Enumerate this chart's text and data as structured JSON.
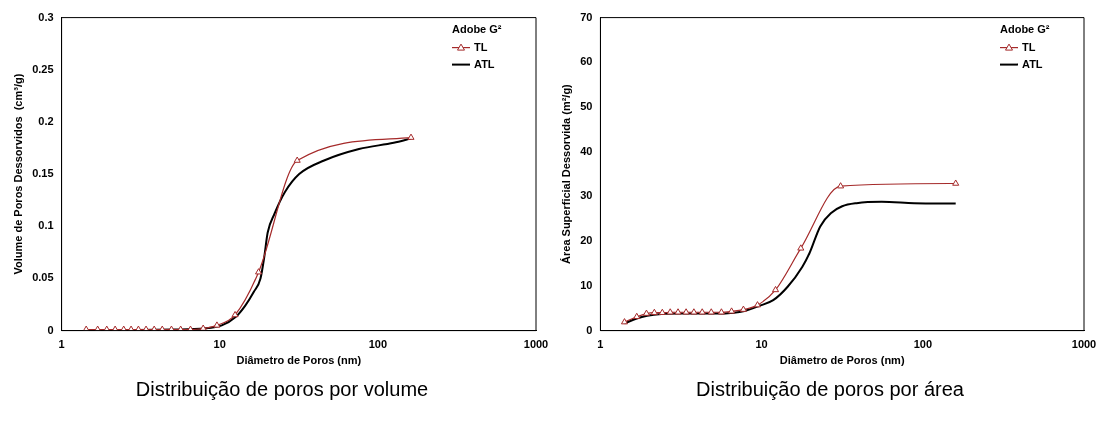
{
  "chart_data": [
    {
      "type": "line",
      "title": "Distribuição de poros por volume",
      "xlabel": "Diâmetro de Poros (nm)",
      "ylabel": "Volume de Poros Dessorvidos  (cm³/g)",
      "legend_title": "Adobe G²",
      "log": "x",
      "xlim": [
        1,
        1000
      ],
      "xticks": [
        1,
        10,
        100,
        1000
      ],
      "ylim": [
        0,
        0.3
      ],
      "yticks": [
        0,
        0.05,
        0.1,
        0.15,
        0.2,
        0.25,
        0.3
      ],
      "grid": false,
      "legend": "top right",
      "series": [
        {
          "name": "TL",
          "color": "#a52a2a",
          "marker": "triangle",
          "x": [
            1.43,
            1.69,
            1.93,
            2.18,
            2.47,
            2.75,
            3.06,
            3.42,
            3.85,
            4.33,
            4.95,
            5.66,
            6.53,
            7.86,
            9.6,
            12.5,
            17.6,
            30.9,
            162
          ],
          "values": [
            0.001,
            0.001,
            0.001,
            0.001,
            0.001,
            0.001,
            0.001,
            0.001,
            0.001,
            0.001,
            0.001,
            0.001,
            0.001,
            0.002,
            0.005,
            0.015,
            0.056,
            0.163,
            0.185
          ]
        },
        {
          "name": "ATL",
          "color": "#000000",
          "marker": "none",
          "x": [
            1.43,
            5,
            8,
            10.3,
            12.6,
            14.5,
            16.4,
            18.1,
            19.1,
            20.1,
            22.2,
            25.9,
            31.8,
            45.7,
            76,
            126,
            162
          ],
          "values": [
            0,
            0.001,
            0.002,
            0.005,
            0.013,
            0.024,
            0.037,
            0.05,
            0.07,
            0.094,
            0.112,
            0.133,
            0.15,
            0.163,
            0.174,
            0.18,
            0.184
          ]
        }
      ]
    },
    {
      "type": "line",
      "title": "Distribuição de poros por área",
      "xlabel": "Diâmetro de Poros (nm)",
      "ylabel": "Área Superficial Dessorvida (m²/g)",
      "legend_title": "Adobe G²",
      "log": "x",
      "xlim": [
        1,
        1000
      ],
      "xticks": [
        1,
        10,
        100,
        1000
      ],
      "ylim": [
        0,
        70
      ],
      "yticks": [
        0,
        10,
        20,
        30,
        40,
        50,
        60,
        70
      ],
      "grid": false,
      "legend": "top right",
      "series": [
        {
          "name": "TL",
          "color": "#a52a2a",
          "marker": "triangle",
          "x": [
            1.41,
            1.68,
            1.93,
            2.16,
            2.42,
            2.71,
            3.03,
            3.4,
            3.8,
            4.28,
            4.87,
            5.63,
            6.51,
            7.71,
            9.43,
            12.2,
            17.5,
            30.9,
            160
          ],
          "values": [
            1.9,
            3.1,
            3.8,
            4,
            4,
            4.1,
            4.1,
            4.1,
            4.1,
            4.1,
            4.1,
            4.1,
            4.3,
            4.7,
            5.7,
            9.1,
            18.4,
            32.3,
            32.9
          ]
        },
        {
          "name": "ATL",
          "color": "#000000",
          "marker": "none",
          "x": [
            1.41,
            1.68,
            1.95,
            2.39,
            3.09,
            5.18,
            6.71,
            7.83,
            9.63,
            11.8,
            14.5,
            17.9,
            19.8,
            23.1,
            27,
            31.6,
            38.8,
            55.6,
            88.3,
            160
          ],
          "values": [
            1.6,
            2.7,
            3.3,
            3.7,
            3.8,
            3.8,
            4,
            4.4,
            5.5,
            6.8,
            9.8,
            14.3,
            17.3,
            23.3,
            26.3,
            27.8,
            28.5,
            28.8,
            28.5,
            28.4
          ]
        }
      ]
    }
  ]
}
